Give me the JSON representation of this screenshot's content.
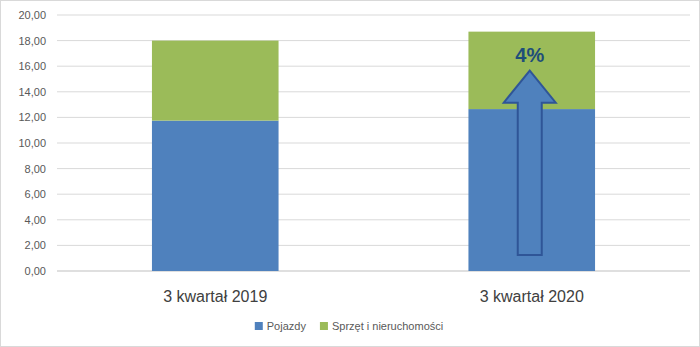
{
  "chart_data": {
    "type": "bar",
    "stacked": true,
    "categories": [
      "3 kwartał 2019",
      "3 kwartał 2020"
    ],
    "series": [
      {
        "name": "Pojazdy",
        "color": "#4f81bd",
        "values": [
          11.75,
          12.65
        ]
      },
      {
        "name": "Sprzęt i nieruchomości",
        "color": "#9bbb59",
        "values": [
          6.25,
          6.05
        ]
      }
    ],
    "ylim": [
      0,
      20
    ],
    "yticks": [
      {
        "value": 0,
        "label": "0,00"
      },
      {
        "value": 2,
        "label": "2,00"
      },
      {
        "value": 4,
        "label": "4,00"
      },
      {
        "value": 6,
        "label": "6,00"
      },
      {
        "value": 8,
        "label": "8,00"
      },
      {
        "value": 10,
        "label": "10,00"
      },
      {
        "value": 12,
        "label": "12,00"
      },
      {
        "value": 14,
        "label": "14,00"
      },
      {
        "value": 16,
        "label": "16,00"
      },
      {
        "value": 18,
        "label": "18,00"
      },
      {
        "value": 20,
        "label": "20,00"
      }
    ],
    "grid": true,
    "legend": "bottom",
    "annotation": "4%"
  }
}
